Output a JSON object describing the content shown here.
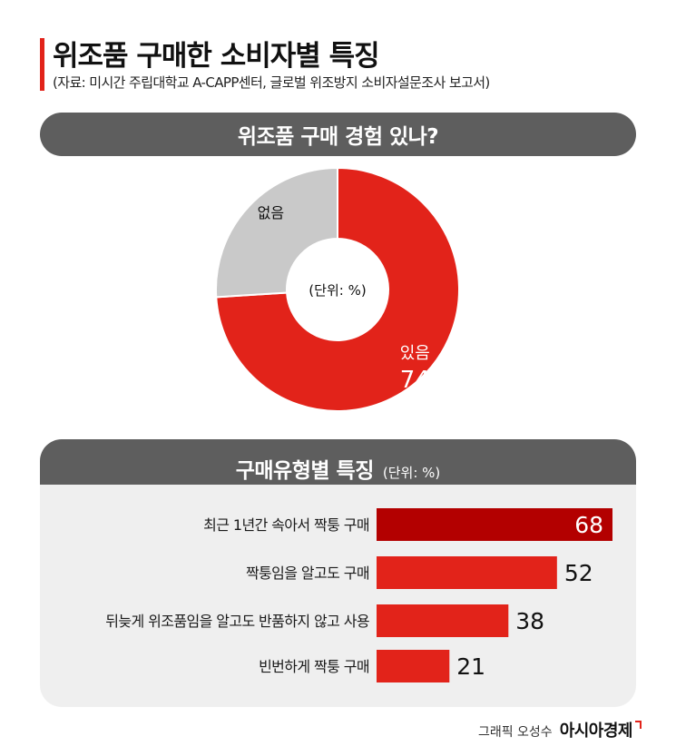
{
  "header": {
    "title": "위조품 구매한 소비자별 특징",
    "source": "(자료: 미시간 주립대학교 A-CAPP센터, 글로벌 위조방지 소비자설문조사 보고서)"
  },
  "donut_section": {
    "title": "위조품 구매 경험 있나?"
  },
  "bar_section": {
    "title": "구매유형별 특징",
    "unit": "(단위: %)"
  },
  "credit": {
    "by": "그래픽 오성수",
    "logo": "아시아경제"
  },
  "colors": {
    "red": "#e2231a",
    "dark_red": "#b30000",
    "gray_slice": "#c9c9c9",
    "pill": "#5e5e5e",
    "panel": "#efefef"
  },
  "chart_data": [
    {
      "type": "pie",
      "title": "위조품 구매 경험 있나?",
      "center_label": "(단위: %)",
      "slices": [
        {
          "label": "있음",
          "value": 74,
          "value_label": "74",
          "color": "#e2231a"
        },
        {
          "label": "없음",
          "value": 26,
          "value_label": "",
          "color": "#c9c9c9"
        }
      ]
    },
    {
      "type": "bar",
      "orientation": "horizontal",
      "title": "구매유형별 특징",
      "unit": "(단위: %)",
      "categories": [
        "최근 1년간 속아서 짝퉁 구매",
        "짝퉁임을 알고도 구매",
        "뒤늦게 위조품임을 알고도 반품하지 않고 사용",
        "빈번하게 짝퉁 구매"
      ],
      "values": [
        68,
        52,
        38,
        21
      ],
      "colors": [
        "#b30000",
        "#e2231a",
        "#e2231a",
        "#e2231a"
      ],
      "xlim": [
        0,
        68
      ]
    }
  ]
}
